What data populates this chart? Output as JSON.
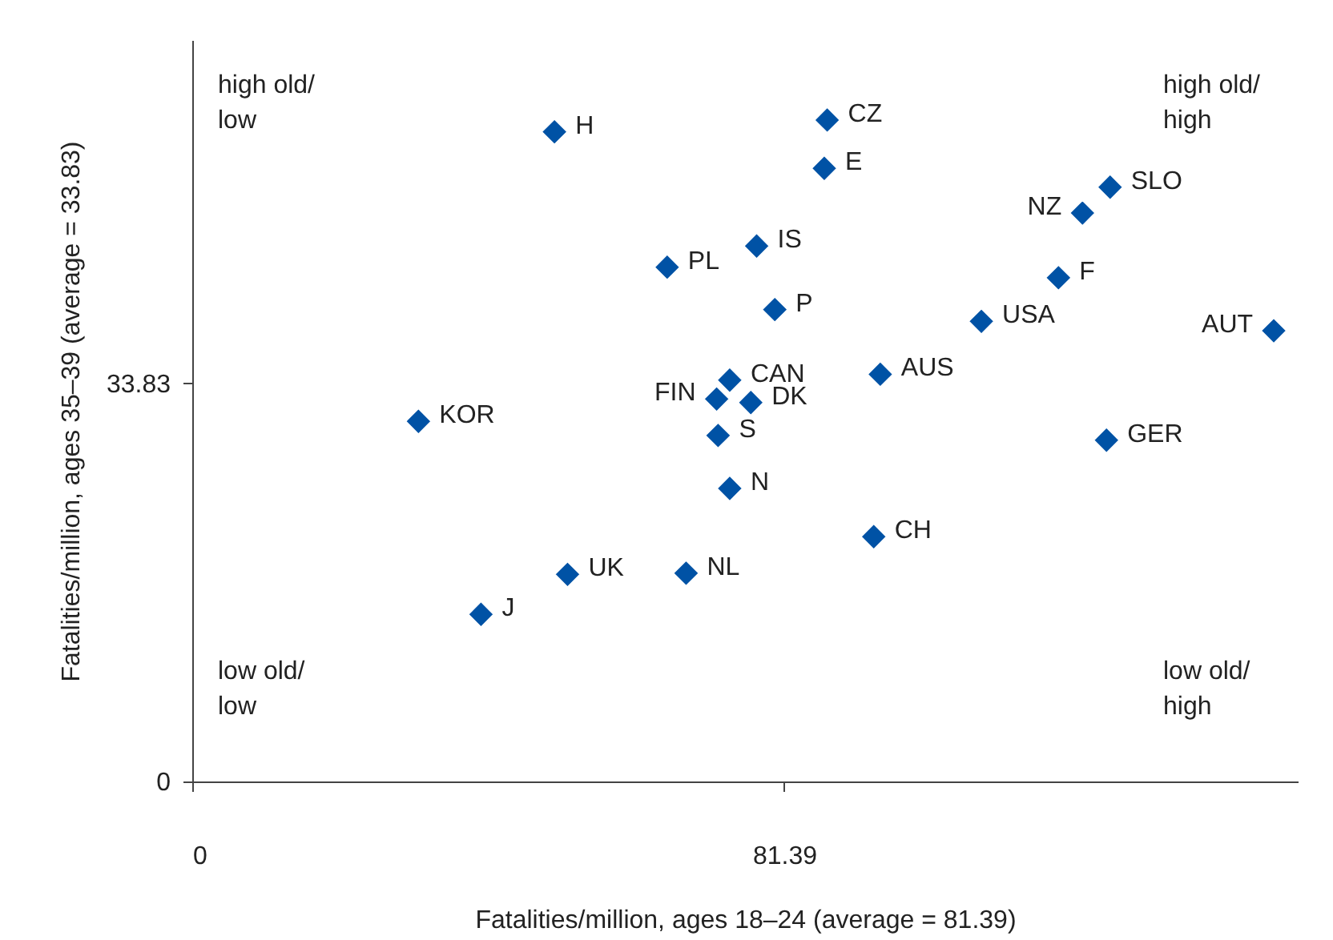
{
  "chart_data": {
    "type": "scatter",
    "xlabel": "Fatalities/million, ages 18–24 (average = 81.39)",
    "ylabel": "Fatalities/million, ages 35–39 (average = 33.83)",
    "x": [
      49.8,
      87.3,
      86.9,
      122.4,
      126.2,
      77.6,
      65.3,
      119.1,
      80.1,
      108.5,
      148.7,
      94.6,
      73.9,
      72.1,
      76.8,
      31.1,
      72.3,
      125.7,
      73.9,
      93.7,
      51.6,
      67.9,
      39.7
    ],
    "values": [
      55.2,
      56.2,
      52.1,
      48.3,
      50.5,
      45.5,
      43.7,
      42.8,
      40.1,
      39.1,
      38.3,
      34.6,
      34.1,
      32.5,
      32.2,
      30.6,
      29.4,
      29.0,
      24.9,
      20.8,
      17.6,
      17.7,
      14.2
    ],
    "color": "#0052a5",
    "marker": "diamond",
    "grid": false,
    "xlim": [
      0,
      152
    ],
    "ylim": [
      0,
      63
    ],
    "xticks": [
      0,
      81.39
    ],
    "yticks": [
      0,
      33.83
    ],
    "annotations": [
      {
        "text": "H",
        "x": 49.8,
        "y": 55.2
      },
      {
        "text": "CZ",
        "x": 87.3,
        "y": 56.2
      },
      {
        "text": "E",
        "x": 86.9,
        "y": 52.1
      },
      {
        "text": "NZ",
        "x": 122.4,
        "y": 48.3
      },
      {
        "text": "SLO",
        "x": 126.2,
        "y": 50.5
      },
      {
        "text": "IS",
        "x": 77.6,
        "y": 45.5
      },
      {
        "text": "PL",
        "x": 65.3,
        "y": 43.7
      },
      {
        "text": "F",
        "x": 119.1,
        "y": 42.8
      },
      {
        "text": "P",
        "x": 80.1,
        "y": 40.1
      },
      {
        "text": "USA",
        "x": 108.5,
        "y": 39.1
      },
      {
        "text": "AUT",
        "x": 148.7,
        "y": 38.3
      },
      {
        "text": "AUS",
        "x": 94.6,
        "y": 34.6
      },
      {
        "text": "CAN",
        "x": 73.9,
        "y": 34.1
      },
      {
        "text": "FIN",
        "x": 72.1,
        "y": 32.5
      },
      {
        "text": "DK",
        "x": 76.8,
        "y": 32.2
      },
      {
        "text": "KOR",
        "x": 31.1,
        "y": 30.6
      },
      {
        "text": "S",
        "x": 72.3,
        "y": 29.4
      },
      {
        "text": "GER",
        "x": 125.7,
        "y": 29.0
      },
      {
        "text": "N",
        "x": 73.9,
        "y": 24.9
      },
      {
        "text": "CH",
        "x": 93.7,
        "y": 20.8
      },
      {
        "text": "UK",
        "x": 51.6,
        "y": 17.6
      },
      {
        "text": "NL",
        "x": 67.9,
        "y": 17.7
      },
      {
        "text": "J",
        "x": 39.7,
        "y": 14.2
      },
      "high old/\nlow",
      "high old/\nhigh",
      "low old/\nlow",
      "low old/\nhigh"
    ]
  }
}
